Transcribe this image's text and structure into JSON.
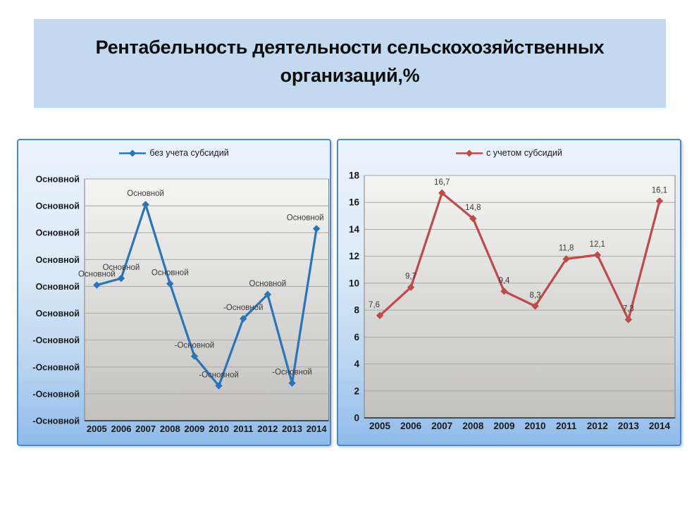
{
  "title": {
    "text": "Рентабельность деятельности сельскохозяйственных организаций,%"
  },
  "colors": {
    "title_bg": "#C2D9F0",
    "panel_border": "#4E87C6",
    "panel_bg_top": "#EAF3FC",
    "panel_bg_bottom": "#8FBBEB",
    "plot_bg_top": "#F5F5F3",
    "plot_bg_bottom": "#C2C1BF",
    "gridline": "#A8A8A8",
    "plot_border": "#808080",
    "axis_line": "#4A4A4A",
    "series_without_subsidies": "#2B74B7",
    "series_with_subsidies": "#BE4B48"
  },
  "chart_data": [
    {
      "type": "line",
      "legend": "без учета субсидий",
      "color": "#2B74B7",
      "x": [
        "2005",
        "2006",
        "2007",
        "2008",
        "2009",
        "2010",
        "2011",
        "2012",
        "2013",
        "2014"
      ],
      "values": [
        2.1,
        2.6,
        8.1,
        2.2,
        -3.2,
        -5.4,
        -0.4,
        1.4,
        -5.2,
        6.3
      ],
      "point_labels": [
        "Основной",
        "Основной",
        "Основной",
        "Основной",
        "-Основной",
        "-Основной",
        "-Основной",
        "Основной",
        "-Основной",
        "Основной"
      ],
      "y_axis": {
        "max": 10,
        "min": -8,
        "step": 2,
        "tick_labels_top_to_bottom": [
          "Основной",
          "Основной",
          "Основной",
          "Основной",
          "Основной",
          "Основной",
          "-Основной",
          "-Основной",
          "-Основной",
          "-Основной"
        ]
      },
      "grid": true,
      "legend_position": "top"
    },
    {
      "type": "line",
      "legend": "с учетом субсидий",
      "color": "#BE4B48",
      "x": [
        "2005",
        "2006",
        "2007",
        "2008",
        "2009",
        "2010",
        "2011",
        "2012",
        "2013",
        "2014"
      ],
      "values": [
        7.6,
        9.7,
        16.7,
        14.8,
        9.4,
        8.3,
        11.8,
        12.1,
        7.3,
        16.1
      ],
      "point_labels": [
        "7,6",
        "9,7",
        "16,7",
        "14,8",
        "9,4",
        "8,3",
        "11,8",
        "12,1",
        "7,3",
        "16,1"
      ],
      "y_axis": {
        "max": 18,
        "min": 0,
        "step": 2,
        "tick_labels_top_to_bottom": [
          "18",
          "16",
          "14",
          "12",
          "10",
          "8",
          "6",
          "4",
          "2",
          "0"
        ]
      },
      "grid": true,
      "legend_position": "top"
    }
  ]
}
